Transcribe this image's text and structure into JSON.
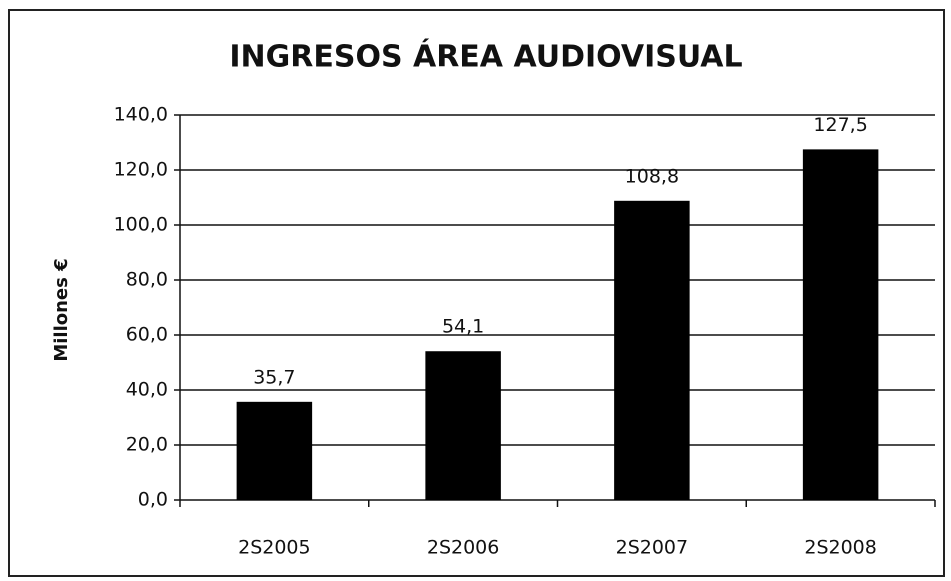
{
  "chart_data": {
    "type": "bar",
    "title": "INGRESOS ÁREA AUDIOVISUAL",
    "y_label": "Millones €",
    "categories": [
      "2S2005",
      "2S2006",
      "2S2007",
      "2S2008"
    ],
    "values": [
      35.7,
      54.1,
      108.8,
      127.5
    ],
    "value_labels": [
      "35,7",
      "54,1",
      "108,8",
      "127,5"
    ],
    "color": "#000000",
    "ylim": [
      0,
      140
    ],
    "yticks": [
      {
        "value": 0,
        "label": "0,0"
      },
      {
        "value": 20,
        "label": "20,0"
      },
      {
        "value": 40,
        "label": "40,0"
      },
      {
        "value": 60,
        "label": "60,0"
      },
      {
        "value": 80,
        "label": "80,0"
      },
      {
        "value": 100,
        "label": "100,0"
      },
      {
        "value": 120,
        "label": "120,0"
      },
      {
        "value": 140,
        "label": "140,0"
      }
    ],
    "grid": true
  }
}
